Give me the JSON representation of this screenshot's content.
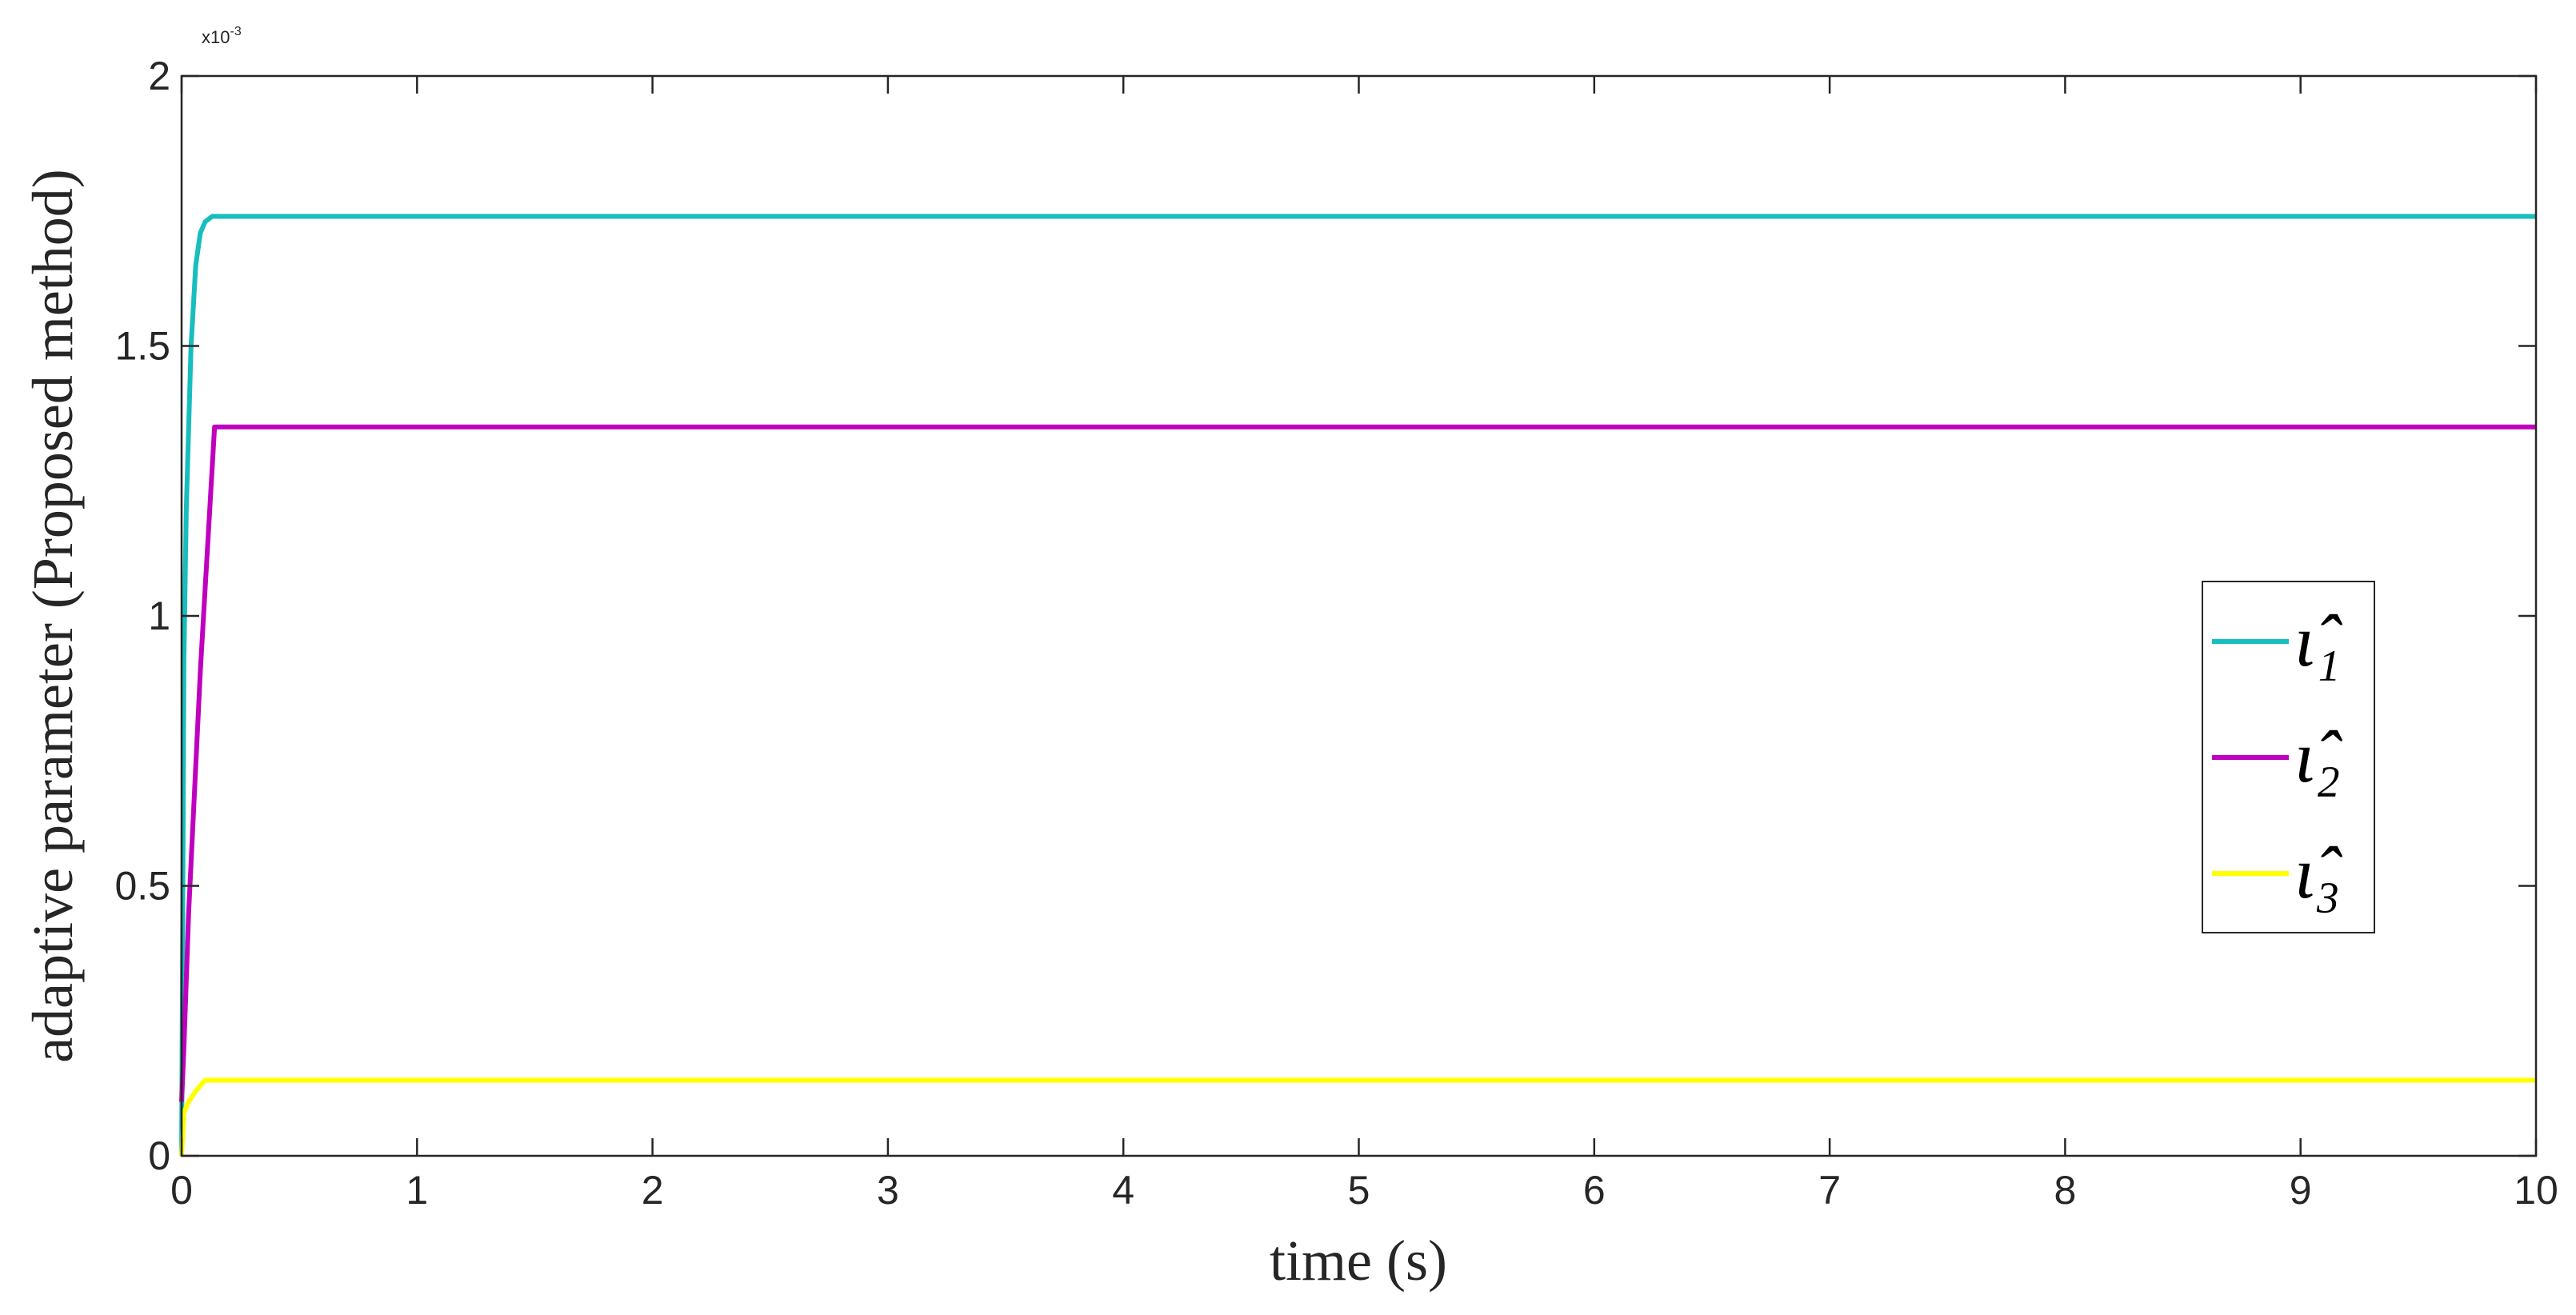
{
  "chart_data": {
    "type": "line",
    "x_label": "time (s)",
    "y_label": "adaptive parameter (Proposed method)",
    "y_multiplier": {
      "base": "x10",
      "exponent": "-3"
    },
    "xlim": [
      0,
      10
    ],
    "ylim": [
      0,
      2
    ],
    "xticks": [
      0,
      1,
      2,
      3,
      4,
      5,
      6,
      7,
      8,
      9,
      10
    ],
    "yticks": [
      0,
      0.5,
      1,
      1.5,
      2
    ],
    "legend": "right",
    "grid": false,
    "series": [
      {
        "name": "ι̂₁",
        "color": "#17bebe",
        "x": [
          0,
          0.01,
          0.02,
          0.04,
          0.06,
          0.08,
          0.1,
          0.13,
          10
        ],
        "values": [
          0,
          0.92,
          1.2,
          1.5,
          1.65,
          1.71,
          1.73,
          1.74,
          1.74
        ]
      },
      {
        "name": "ι̂₂",
        "color": "#bf00bf",
        "x": [
          0,
          0.01,
          0.03,
          0.08,
          0.14,
          10
        ],
        "values": [
          0.1,
          0.2,
          0.45,
          0.9,
          1.35,
          1.35
        ]
      },
      {
        "name": "ι̂₃",
        "color": "#ffff00",
        "x": [
          0,
          0.01,
          0.03,
          0.06,
          0.1,
          0.15,
          10
        ],
        "values": [
          0,
          0.08,
          0.1,
          0.12,
          0.14,
          0.14,
          0.14
        ]
      }
    ]
  }
}
